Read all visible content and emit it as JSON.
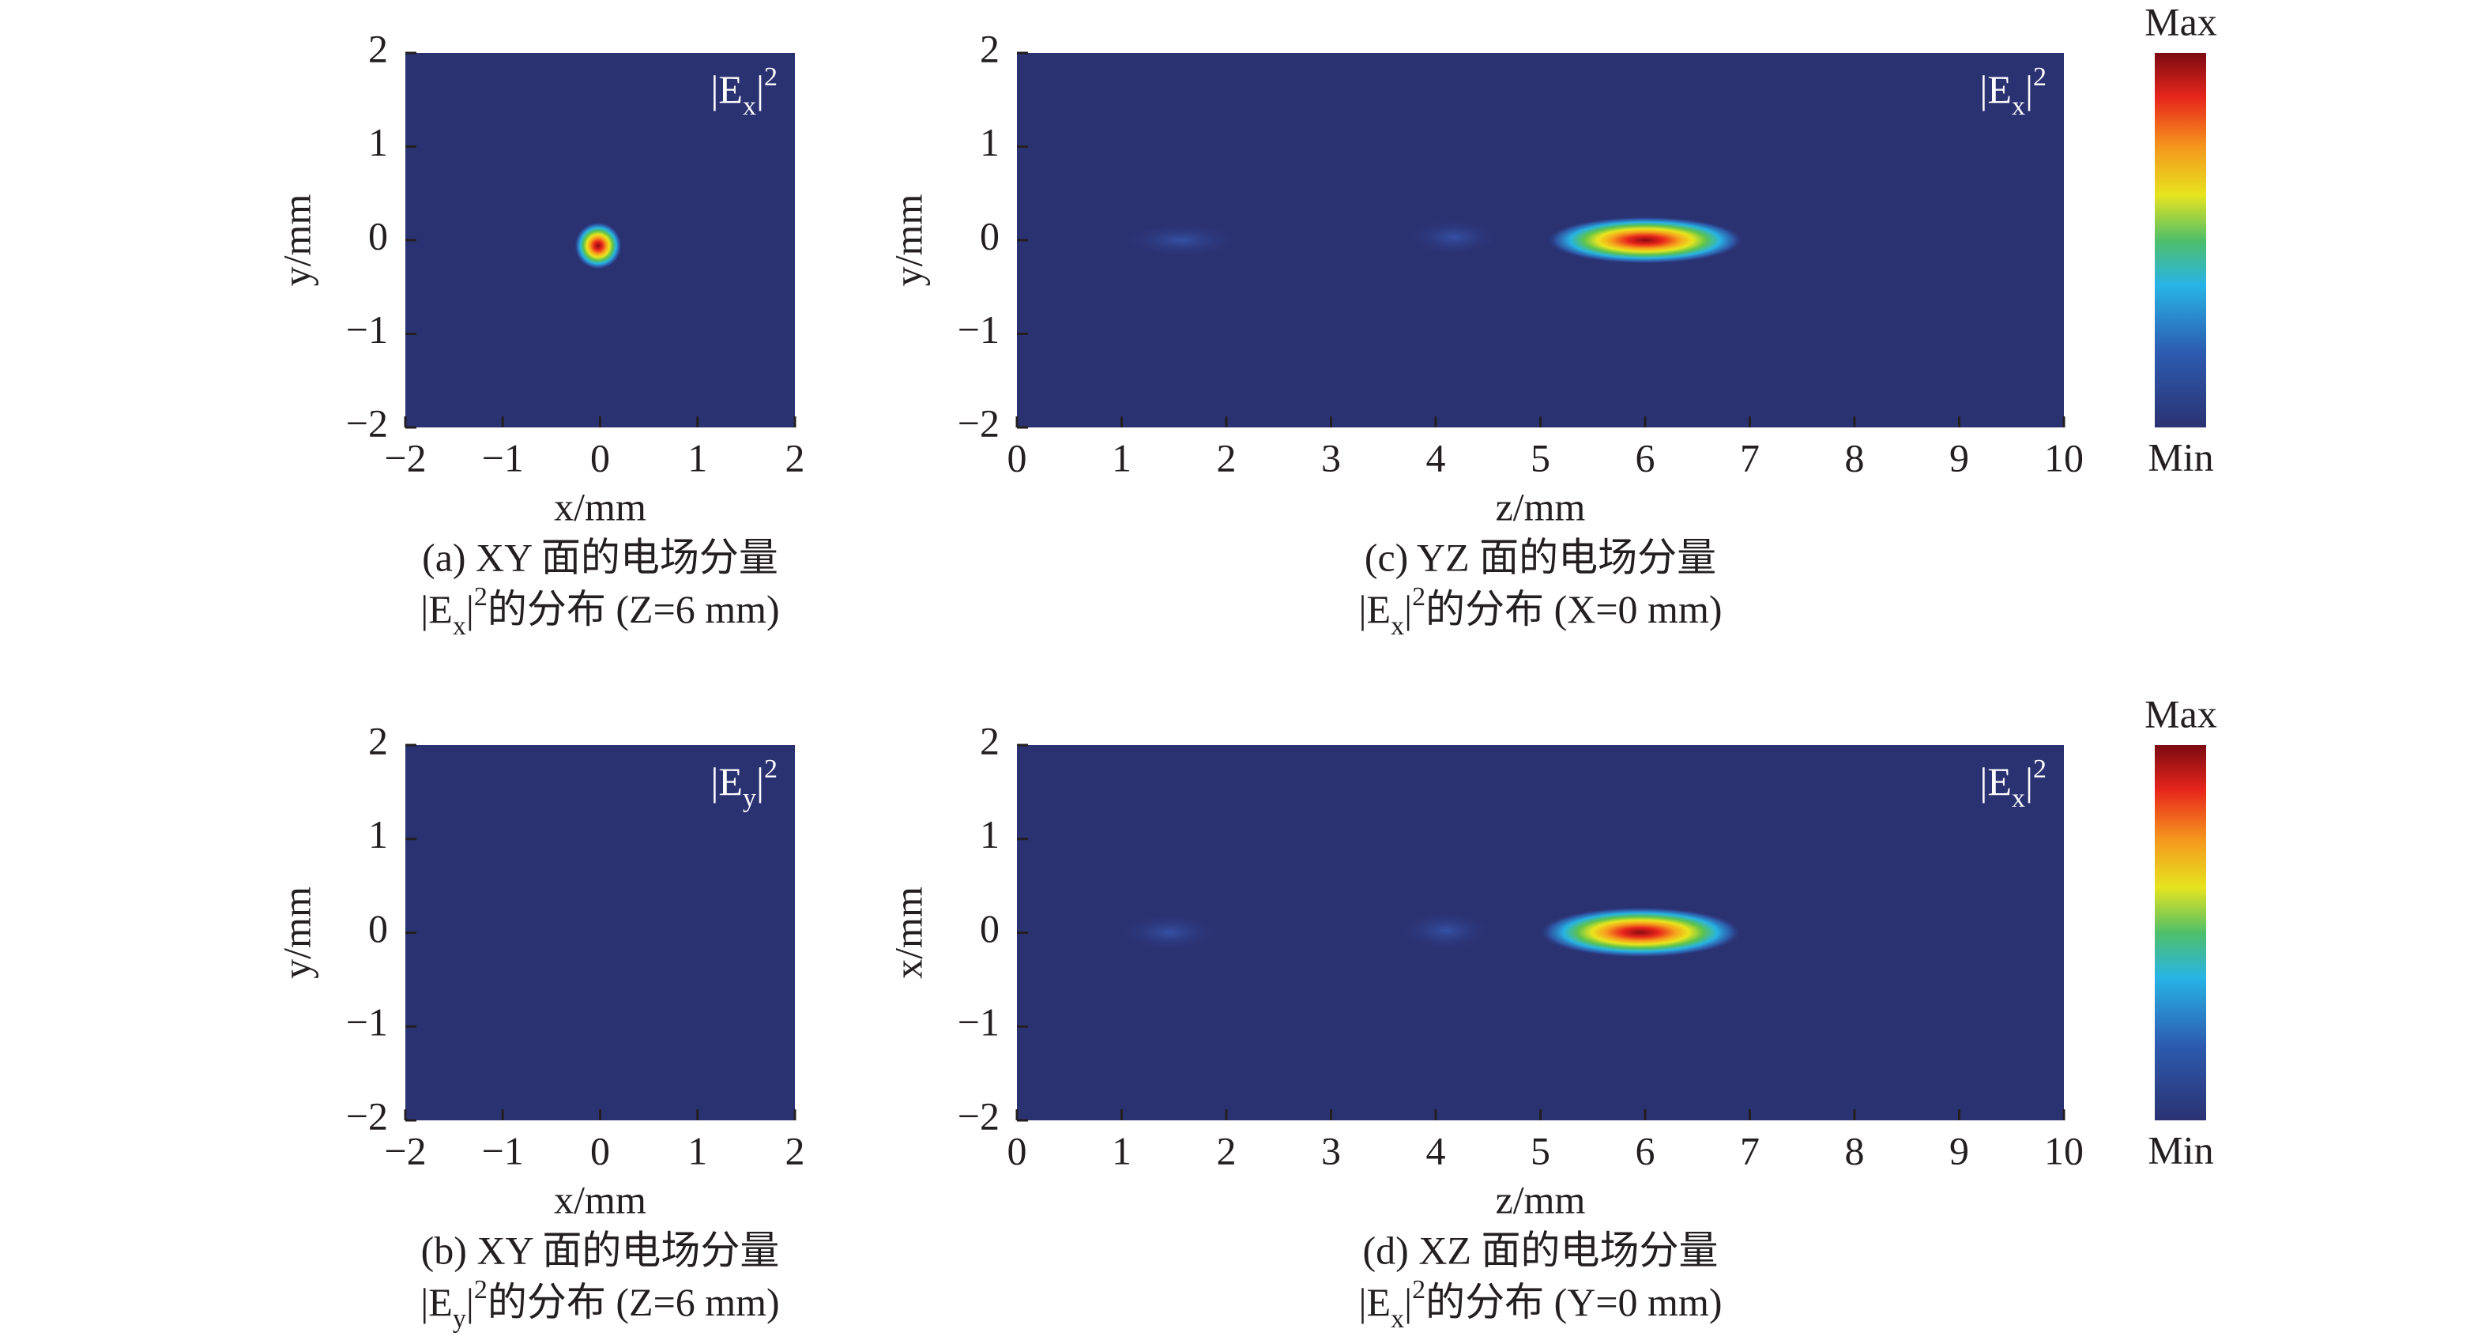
{
  "chart_data": [
    {
      "type": "heatmap",
      "background": "#2b3272",
      "colormap": "jet",
      "xlabel": "x/mm",
      "ylabel": "y/mm",
      "xlim": [
        -2,
        2
      ],
      "ylim": [
        -2,
        2
      ],
      "xticks": [
        {
          "value": -2,
          "label": "−2"
        },
        {
          "value": -1,
          "label": "−1"
        },
        0,
        1,
        2
      ],
      "yticks": [
        {
          "value": -2,
          "label": "−2"
        },
        {
          "value": -1,
          "label": "−1"
        },
        0,
        1,
        2
      ],
      "annotation": [
        {
          "text": "|E"
        },
        {
          "text": "x",
          "style": "sub"
        },
        {
          "text": "|"
        },
        {
          "text": "2",
          "style": "sup"
        }
      ],
      "caption": [
        "(a) XY 面的电场分量",
        [
          {
            "text": "|E"
          },
          {
            "text": "x",
            "style": "sub"
          },
          {
            "text": "|"
          },
          {
            "text": "2",
            "style": "sup"
          },
          {
            "text": "的分布 (Z=6 mm)"
          }
        ]
      ]
    },
    {
      "type": "heatmap",
      "background": "#2b3272",
      "colormap": "jet",
      "xlabel": "x/mm",
      "ylabel": "y/mm",
      "xlim": [
        -2,
        2
      ],
      "ylim": [
        -2,
        2
      ],
      "xticks": [
        {
          "value": -2,
          "label": "−2"
        },
        {
          "value": -1,
          "label": "−1"
        },
        0,
        1,
        2
      ],
      "yticks": [
        {
          "value": -2,
          "label": "−2"
        },
        {
          "value": -1,
          "label": "−1"
        },
        0,
        1,
        2
      ],
      "annotation": [
        {
          "text": "|E"
        },
        {
          "text": "y",
          "style": "sub"
        },
        {
          "text": "|"
        },
        {
          "text": "2",
          "style": "sup"
        }
      ],
      "caption": [
        "(b) XY 面的电场分量",
        [
          {
            "text": "|E"
          },
          {
            "text": "y",
            "style": "sub"
          },
          {
            "text": "|"
          },
          {
            "text": "2",
            "style": "sup"
          },
          {
            "text": "的分布 (Z=6 mm)"
          }
        ]
      ]
    },
    {
      "type": "heatmap",
      "background": "#2b3272",
      "colormap": "jet",
      "xlabel": "z/mm",
      "ylabel": "y/mm",
      "xlim": [
        0,
        10
      ],
      "ylim": [
        -2,
        2
      ],
      "xticks": [
        0,
        1,
        2,
        3,
        4,
        5,
        6,
        7,
        8,
        9,
        10
      ],
      "yticks": [
        {
          "value": -2,
          "label": "−2"
        },
        {
          "value": -1,
          "label": "−1"
        },
        0,
        1,
        2
      ],
      "annotation": [
        {
          "text": "|E"
        },
        {
          "text": "x",
          "style": "sub"
        },
        {
          "text": "|"
        },
        {
          "text": "2",
          "style": "sup"
        }
      ],
      "caption": [
        "(c) YZ 面的电场分量",
        [
          {
            "text": "|E"
          },
          {
            "text": "x",
            "style": "sub"
          },
          {
            "text": "|"
          },
          {
            "text": "2",
            "style": "sup"
          },
          {
            "text": "的分布 (X=0 mm)"
          }
        ]
      ],
      "colorbar": {
        "max_label": "Max",
        "min_label": "Min"
      }
    },
    {
      "type": "heatmap",
      "background": "#2b3272",
      "colormap": "jet",
      "xlabel": "z/mm",
      "ylabel": "x/mm",
      "xlim": [
        0,
        10
      ],
      "ylim": [
        -2,
        2
      ],
      "xticks": [
        0,
        1,
        2,
        3,
        4,
        5,
        6,
        7,
        8,
        9,
        10
      ],
      "yticks": [
        {
          "value": -2,
          "label": "−2"
        },
        {
          "value": -1,
          "label": "−1"
        },
        0,
        1,
        2
      ],
      "annotation": [
        {
          "text": "|E"
        },
        {
          "text": "x",
          "style": "sub"
        },
        {
          "text": "|"
        },
        {
          "text": "2",
          "style": "sup"
        }
      ],
      "caption": [
        "(d) XZ 面的电场分量",
        [
          {
            "text": "|E"
          },
          {
            "text": "x",
            "style": "sub"
          },
          {
            "text": "|"
          },
          {
            "text": "2",
            "style": "sup"
          },
          {
            "text": "的分布 (Y=0 mm)"
          }
        ]
      ],
      "colorbar": {
        "max_label": "Max",
        "min_label": "Min"
      }
    }
  ]
}
